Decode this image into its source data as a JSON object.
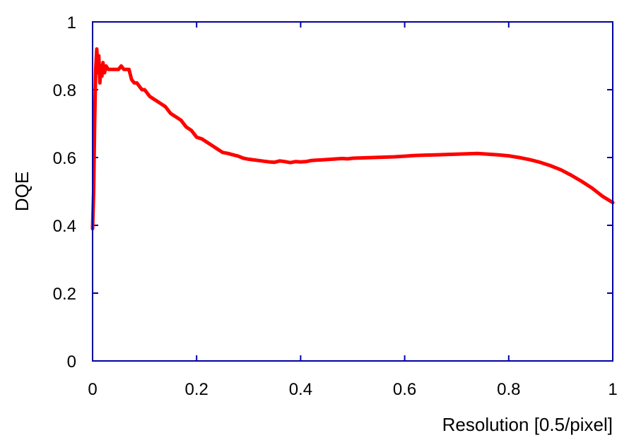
{
  "chart_data": {
    "type": "line",
    "title": "",
    "xlabel": "Resolution [0.5/pixel]",
    "ylabel": "DQE",
    "xlim": [
      0,
      1
    ],
    "ylim": [
      0,
      1
    ],
    "x_ticks": [
      0,
      0.2,
      0.4,
      0.6,
      0.8,
      1
    ],
    "y_ticks": [
      0,
      0.2,
      0.4,
      0.6,
      0.8,
      1
    ],
    "x_tick_labels": [
      "0",
      "0.2",
      "0.4",
      "0.6",
      "0.8",
      "1"
    ],
    "y_tick_labels": [
      "0",
      "0.2",
      "0.4",
      "0.6",
      "0.8",
      "1"
    ],
    "grid": false,
    "axis_color": "#0000a0",
    "series": [
      {
        "color": "#ff0000",
        "x": [
          0,
          0.002,
          0.004,
          0.006,
          0.008,
          0.01,
          0.012,
          0.014,
          0.016,
          0.018,
          0.02,
          0.023,
          0.026,
          0.03,
          0.035,
          0.04,
          0.045,
          0.05,
          0.055,
          0.06,
          0.065,
          0.07,
          0.075,
          0.08,
          0.085,
          0.09,
          0.095,
          0.1,
          0.11,
          0.12,
          0.13,
          0.14,
          0.15,
          0.16,
          0.17,
          0.18,
          0.19,
          0.2,
          0.21,
          0.22,
          0.23,
          0.24,
          0.25,
          0.26,
          0.27,
          0.28,
          0.29,
          0.3,
          0.31,
          0.32,
          0.33,
          0.34,
          0.35,
          0.36,
          0.37,
          0.38,
          0.39,
          0.4,
          0.41,
          0.42,
          0.43,
          0.44,
          0.45,
          0.46,
          0.47,
          0.48,
          0.49,
          0.5,
          0.52,
          0.54,
          0.56,
          0.58,
          0.6,
          0.62,
          0.64,
          0.66,
          0.68,
          0.7,
          0.72,
          0.74,
          0.75,
          0.76,
          0.78,
          0.8,
          0.82,
          0.84,
          0.86,
          0.88,
          0.9,
          0.92,
          0.94,
          0.96,
          0.98,
          1.0
        ],
        "y": [
          0.39,
          0.5,
          0.7,
          0.86,
          0.92,
          0.85,
          0.9,
          0.82,
          0.87,
          0.84,
          0.88,
          0.85,
          0.87,
          0.86,
          0.86,
          0.86,
          0.86,
          0.86,
          0.87,
          0.86,
          0.86,
          0.86,
          0.83,
          0.82,
          0.82,
          0.81,
          0.8,
          0.8,
          0.78,
          0.77,
          0.76,
          0.75,
          0.73,
          0.72,
          0.71,
          0.69,
          0.68,
          0.66,
          0.655,
          0.645,
          0.635,
          0.625,
          0.615,
          0.612,
          0.608,
          0.604,
          0.598,
          0.595,
          0.593,
          0.591,
          0.589,
          0.587,
          0.586,
          0.59,
          0.588,
          0.585,
          0.588,
          0.587,
          0.588,
          0.591,
          0.592,
          0.593,
          0.594,
          0.595,
          0.596,
          0.597,
          0.596,
          0.598,
          0.599,
          0.6,
          0.601,
          0.602,
          0.604,
          0.606,
          0.607,
          0.608,
          0.609,
          0.61,
          0.611,
          0.612,
          0.611,
          0.61,
          0.608,
          0.605,
          0.6,
          0.594,
          0.586,
          0.576,
          0.564,
          0.548,
          0.53,
          0.51,
          0.486,
          0.467
        ]
      }
    ]
  }
}
